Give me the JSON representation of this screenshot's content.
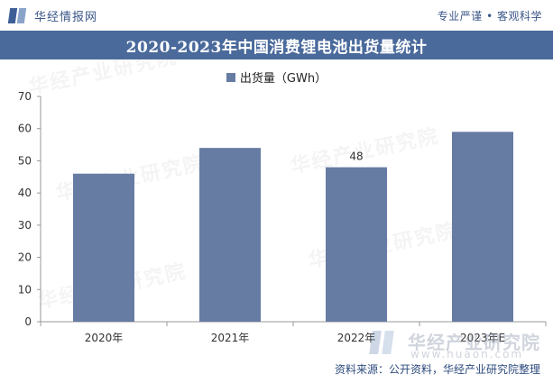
{
  "header": {
    "brand": "华经情报网",
    "slogan": "专业严谨 • 客观科学"
  },
  "chart_data": {
    "type": "bar",
    "title": "2020-2023年中国消费锂电池出货量统计",
    "categories": [
      "2020年",
      "2021年",
      "2022年",
      "2023年E"
    ],
    "series": [
      {
        "name": "出货量（GWh）",
        "values": [
          46,
          54,
          48,
          59
        ],
        "color": "#667ca3"
      }
    ],
    "data_labels": [
      {
        "category": "2022年",
        "text": "48"
      }
    ],
    "ylim": [
      0,
      70
    ],
    "yticks": [
      0,
      10,
      20,
      30,
      40,
      50,
      60,
      70
    ],
    "grid": false,
    "legend_position": "top-center"
  },
  "watermark": {
    "text": "华经产业研究院",
    "url": "www.huaon.com"
  },
  "footer": {
    "source": "资料来源：公开资料，华经产业研究院整理"
  }
}
